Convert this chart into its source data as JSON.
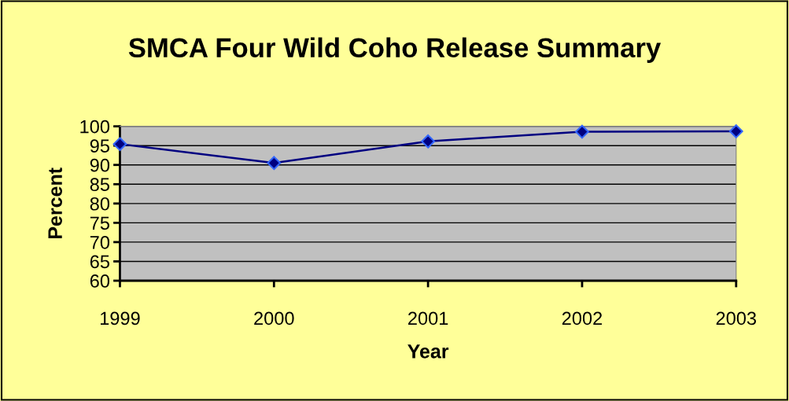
{
  "chart_data": {
    "type": "line",
    "title": "SMCA Four Wild Coho Release Summary",
    "xlabel": "Year",
    "ylabel": "Percent",
    "categories": [
      "1999",
      "2000",
      "2001",
      "2002",
      "2003"
    ],
    "series": [
      {
        "color": "#000080",
        "values": [
          95.4,
          90.5,
          96.1,
          98.6,
          98.7
        ]
      }
    ],
    "marker": "diamond",
    "line_style": "solid",
    "grid": "y",
    "ylim": [
      60,
      100
    ],
    "yticks": [
      60,
      65,
      70,
      75,
      80,
      85,
      90,
      95,
      100
    ],
    "legend": false
  }
}
